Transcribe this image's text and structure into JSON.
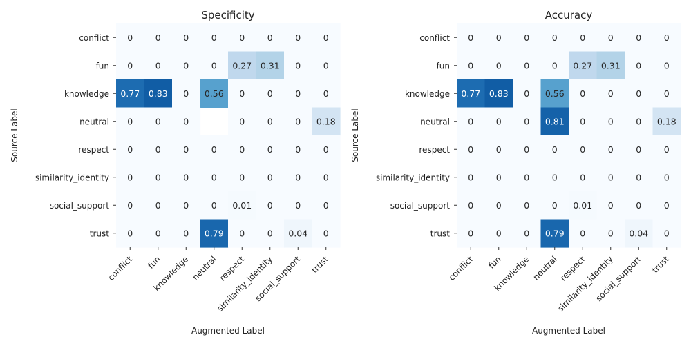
{
  "chart_data": [
    {
      "type": "heatmap",
      "title": "Specificity",
      "xlabel": "Augmented Label",
      "ylabel": "Source Label",
      "x_categories": [
        "conflict",
        "fun",
        "knowledge",
        "neutral",
        "respect",
        "similarity_identity",
        "social_support",
        "trust"
      ],
      "y_categories": [
        "conflict",
        "fun",
        "knowledge",
        "neutral",
        "respect",
        "similarity_identity",
        "social_support",
        "trust"
      ],
      "values": [
        [
          0,
          0,
          0,
          0,
          0,
          0,
          0,
          0
        ],
        [
          0,
          0,
          0,
          0,
          0.27,
          0.31,
          0,
          0
        ],
        [
          0.77,
          0.83,
          0,
          0.56,
          0,
          0,
          0,
          0
        ],
        [
          0,
          0,
          0,
          null,
          0,
          0,
          0,
          0.18
        ],
        [
          0,
          0,
          0,
          0,
          0,
          0,
          0,
          0
        ],
        [
          0,
          0,
          0,
          0,
          0,
          0,
          0,
          0
        ],
        [
          0,
          0,
          0,
          0,
          0.01,
          0,
          0,
          0
        ],
        [
          0,
          0,
          0,
          0.79,
          0,
          0,
          0.04,
          0
        ]
      ],
      "colormap": "Blues",
      "value_range": [
        0,
        1
      ],
      "colorbar": false
    },
    {
      "type": "heatmap",
      "title": "Accuracy",
      "xlabel": "Augmented Label",
      "ylabel": "Source Label",
      "x_categories": [
        "conflict",
        "fun",
        "knowledge",
        "neutral",
        "respect",
        "similarity_identity",
        "social_support",
        "trust"
      ],
      "y_categories": [
        "conflict",
        "fun",
        "knowledge",
        "neutral",
        "respect",
        "similarity_identity",
        "social_support",
        "trust"
      ],
      "values": [
        [
          0,
          0,
          0,
          0,
          0,
          0,
          0,
          0
        ],
        [
          0,
          0,
          0,
          0,
          0.27,
          0.31,
          0,
          0
        ],
        [
          0.77,
          0.83,
          0,
          0.56,
          0,
          0,
          0,
          0
        ],
        [
          0,
          0,
          0,
          0.81,
          0,
          0,
          0,
          0.18
        ],
        [
          0,
          0,
          0,
          0,
          0,
          0,
          0,
          0
        ],
        [
          0,
          0,
          0,
          0,
          0,
          0,
          0,
          0
        ],
        [
          0,
          0,
          0,
          0,
          0.01,
          0,
          0,
          0
        ],
        [
          0,
          0,
          0,
          0.79,
          0,
          0,
          0.04,
          0
        ]
      ],
      "colormap": "Blues",
      "value_range": [
        0,
        1
      ],
      "colorbar": false
    }
  ]
}
